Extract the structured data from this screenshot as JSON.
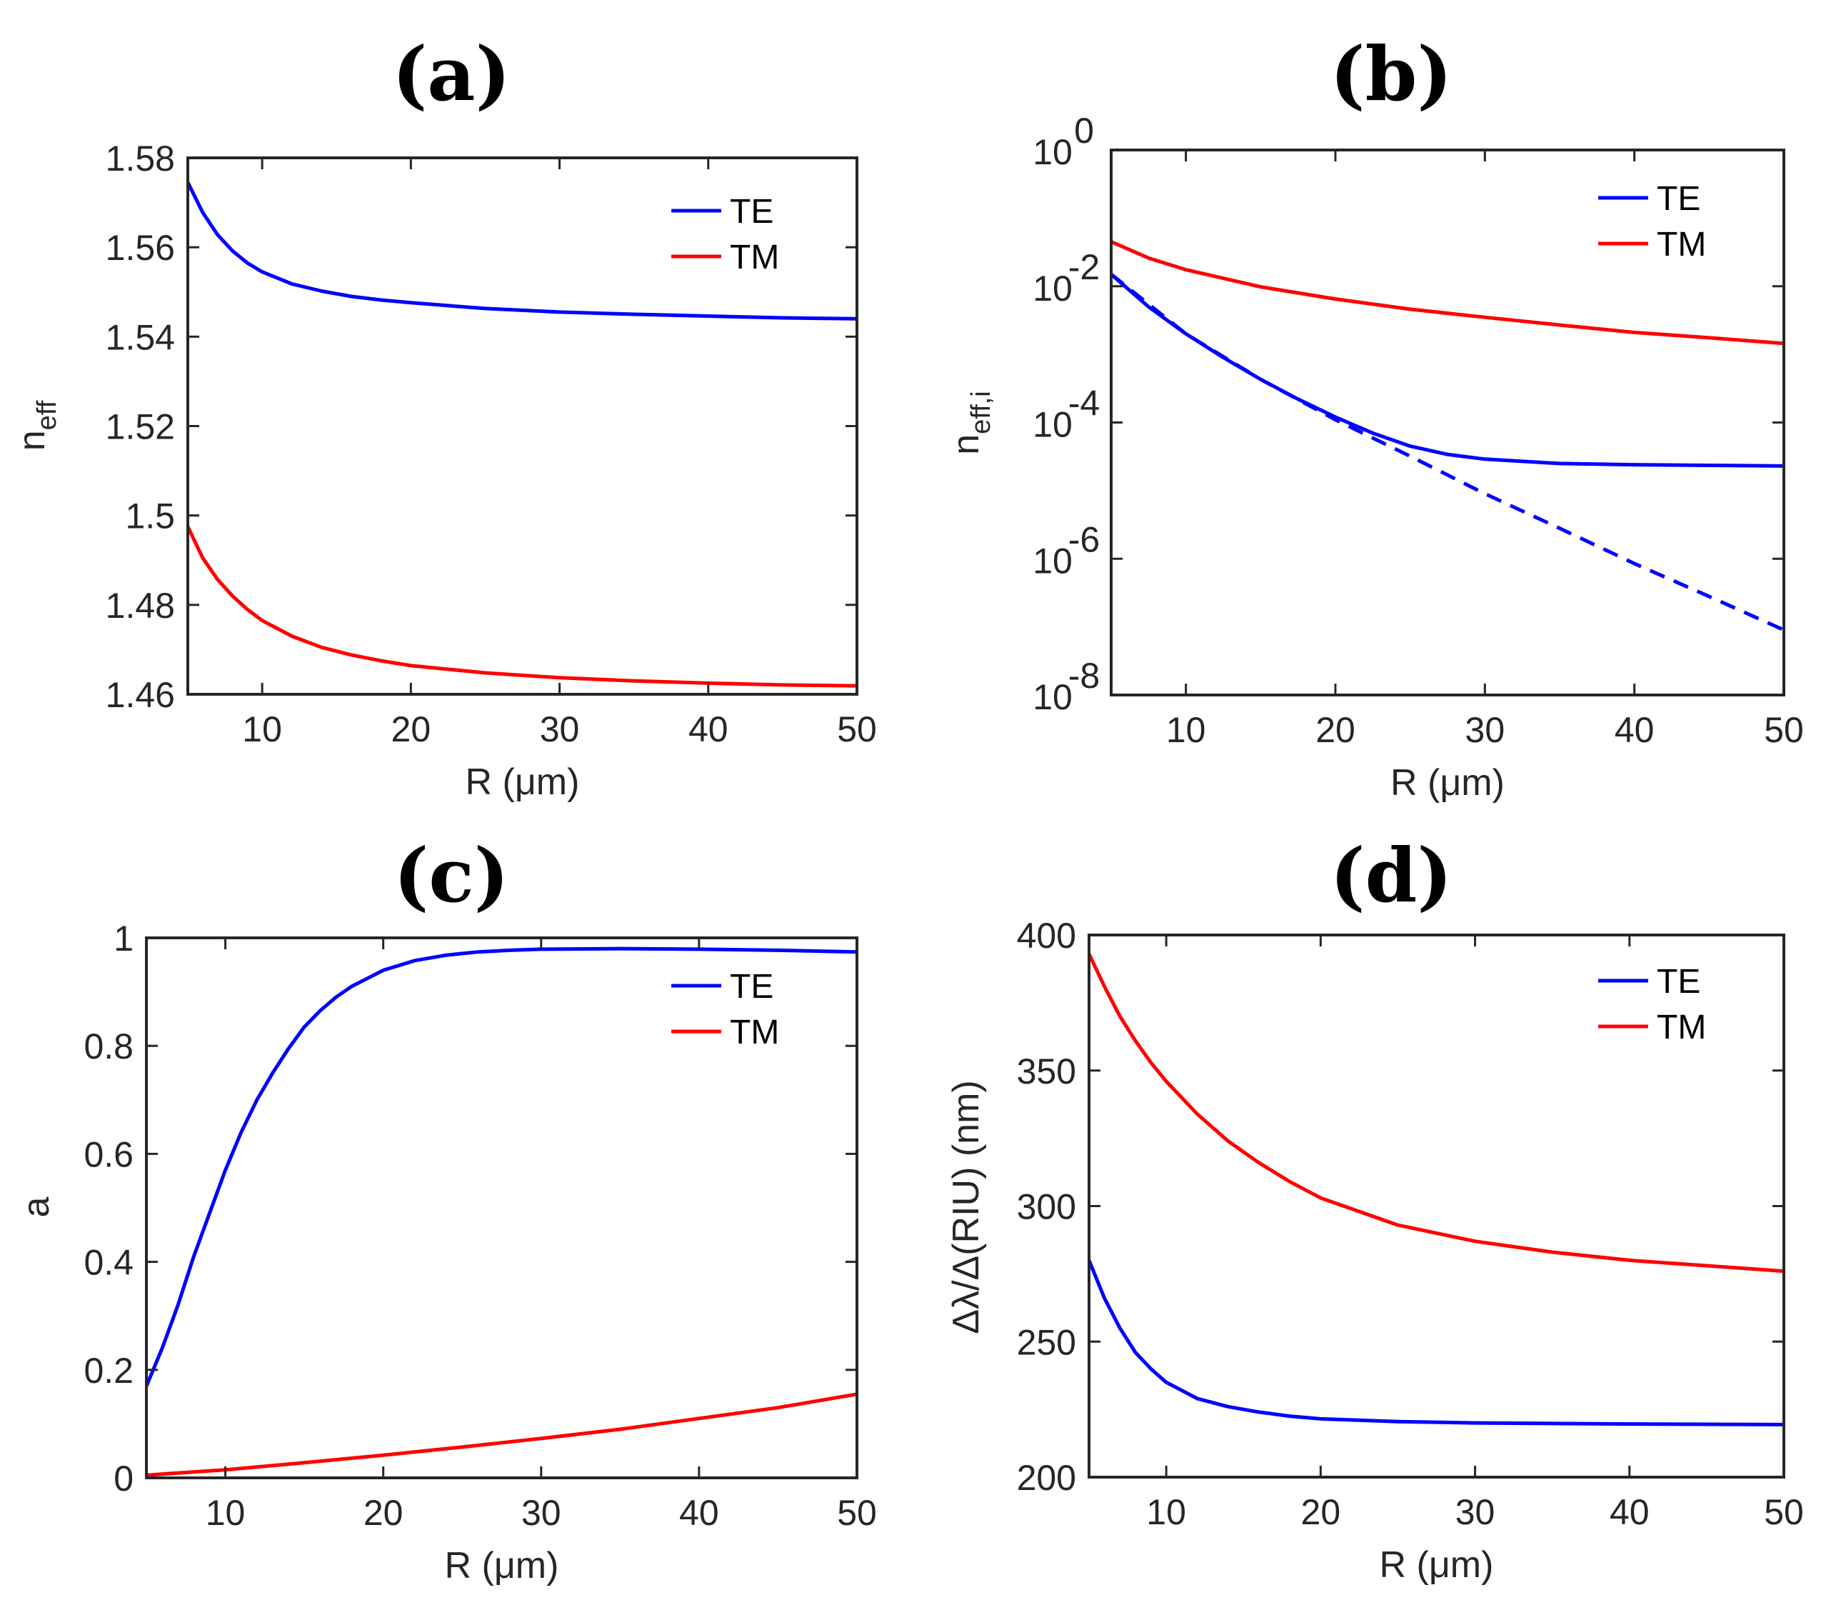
{
  "chart_data": [
    {
      "type": "line",
      "title": "(a)",
      "xlabel": "R (μm)",
      "ylabel": "n",
      "ylabel_sub": "eff",
      "xlim": [
        5,
        50
      ],
      "ylim": [
        1.46,
        1.58
      ],
      "yscale": "linear",
      "xticks": [
        10,
        20,
        30,
        40,
        50
      ],
      "xtick_labels": [
        "10",
        "20",
        "30",
        "40",
        "50"
      ],
      "yticks": [
        1.46,
        1.48,
        1.5,
        1.52,
        1.54,
        1.56,
        1.58
      ],
      "ytick_labels": [
        "1.46",
        "1.48",
        "1.5",
        "1.52",
        "1.54",
        "1.56",
        "1.58"
      ],
      "legend_position": "top-right",
      "series": [
        {
          "name": "TE",
          "color": "#0000ff",
          "style": "solid",
          "legend": true,
          "x": [
            5,
            6,
            7,
            8,
            9,
            10,
            12,
            14,
            16,
            18,
            20,
            25,
            30,
            35,
            40,
            45,
            50
          ],
          "y": [
            1.5745,
            1.5678,
            1.5628,
            1.5592,
            1.5565,
            1.5545,
            1.5518,
            1.5502,
            1.549,
            1.5482,
            1.5476,
            1.5463,
            1.5455,
            1.545,
            1.5446,
            1.5442,
            1.544
          ]
        },
        {
          "name": "TM",
          "color": "#ff0000",
          "style": "solid",
          "legend": true,
          "x": [
            5,
            6,
            7,
            8,
            9,
            10,
            12,
            14,
            16,
            18,
            20,
            25,
            30,
            35,
            40,
            45,
            50
          ],
          "y": [
            1.4975,
            1.4905,
            1.4857,
            1.482,
            1.479,
            1.4765,
            1.473,
            1.4705,
            1.4688,
            1.4675,
            1.4664,
            1.4648,
            1.4637,
            1.463,
            1.4625,
            1.4621,
            1.4619
          ]
        }
      ]
    },
    {
      "type": "line",
      "title": "(b)",
      "xlabel": "R (μm)",
      "ylabel": "n",
      "ylabel_sub": "eff,i",
      "xlim": [
        5,
        50
      ],
      "ylim": [
        1e-08,
        1
      ],
      "yscale": "log",
      "xticks": [
        10,
        20,
        30,
        40,
        50
      ],
      "xtick_labels": [
        "10",
        "20",
        "30",
        "40",
        "50"
      ],
      "yticks": [
        1e-08,
        1e-06,
        0.0001,
        0.01,
        1
      ],
      "ytick_base": [
        "10",
        "10",
        "10",
        "10",
        "10"
      ],
      "ytick_exp": [
        "-8",
        "-6",
        "-4",
        "-2",
        "0"
      ],
      "legend_position": "top-right",
      "series": [
        {
          "name": "TE",
          "color": "#0000ff",
          "style": "solid",
          "legend": true,
          "x": [
            5,
            7.5,
            10,
            12.5,
            15,
            17.5,
            20,
            22.5,
            25,
            27.5,
            30,
            35,
            40,
            45,
            50
          ],
          "y": [
            0.015,
            0.005,
            0.002,
            0.0009,
            0.00043,
            0.00022,
            0.00012,
            7e-05,
            4.5e-05,
            3.4e-05,
            2.9e-05,
            2.5e-05,
            2.4e-05,
            2.35e-05,
            2.3e-05
          ]
        },
        {
          "name": "TE (dashed)",
          "color": "#0000ff",
          "style": "dashed",
          "legend": false,
          "x": [
            5,
            10,
            15,
            20,
            25,
            30,
            35,
            40,
            45,
            50
          ],
          "y": [
            0.015,
            0.002,
            0.00043,
            0.00011,
            3.2e-05,
            9e-06,
            2.8e-06,
            8.5e-07,
            2.8e-07,
            9e-08
          ]
        },
        {
          "name": "TM",
          "color": "#ff0000",
          "style": "solid",
          "legend": true,
          "x": [
            5,
            7.5,
            10,
            15,
            20,
            25,
            30,
            35,
            40,
            45,
            50
          ],
          "y": [
            0.045,
            0.026,
            0.0175,
            0.0098,
            0.0065,
            0.0046,
            0.0035,
            0.0027,
            0.0021,
            0.00175,
            0.00145
          ]
        }
      ]
    },
    {
      "type": "line",
      "title": "(c)",
      "xlabel": "R (μm)",
      "ylabel": "a",
      "ylabel_sub": "",
      "xlim": [
        5,
        50
      ],
      "ylim": [
        0,
        1
      ],
      "yscale": "linear",
      "xticks": [
        10,
        20,
        30,
        40,
        50
      ],
      "xtick_labels": [
        "10",
        "20",
        "30",
        "40",
        "50"
      ],
      "yticks": [
        0,
        0.2,
        0.4,
        0.6,
        0.8,
        1
      ],
      "ytick_labels": [
        "0",
        "0.2",
        "0.4",
        "0.6",
        "0.8",
        "1"
      ],
      "legend_position": "top-right",
      "series": [
        {
          "name": "TE",
          "color": "#0000ff",
          "style": "solid",
          "legend": true,
          "x": [
            5,
            6,
            7,
            8,
            9,
            10,
            11,
            12,
            13,
            14,
            15,
            16,
            17,
            18,
            19,
            20,
            22,
            24,
            26,
            28,
            30,
            35,
            40,
            45,
            50
          ],
          "y": [
            0.17,
            0.24,
            0.32,
            0.41,
            0.49,
            0.57,
            0.64,
            0.7,
            0.75,
            0.795,
            0.835,
            0.865,
            0.89,
            0.91,
            0.925,
            0.94,
            0.958,
            0.968,
            0.974,
            0.977,
            0.979,
            0.98,
            0.979,
            0.977,
            0.974
          ]
        },
        {
          "name": "TM",
          "color": "#ff0000",
          "style": "solid",
          "legend": true,
          "x": [
            5,
            10,
            15,
            20,
            25,
            30,
            35,
            40,
            45,
            50
          ],
          "y": [
            0.005,
            0.015,
            0.028,
            0.042,
            0.057,
            0.073,
            0.09,
            0.11,
            0.13,
            0.155
          ]
        }
      ]
    },
    {
      "type": "line",
      "title": "(d)",
      "xlabel": "R (μm)",
      "ylabel": "Δλ/Δ(RIU)  (nm)",
      "ylabel_sub": "",
      "xlim": [
        5,
        50
      ],
      "ylim": [
        200,
        400
      ],
      "yscale": "linear",
      "xticks": [
        10,
        20,
        30,
        40,
        50
      ],
      "xtick_labels": [
        "10",
        "20",
        "30",
        "40",
        "50"
      ],
      "yticks": [
        200,
        250,
        300,
        350,
        400
      ],
      "ytick_labels": [
        "200",
        "250",
        "300",
        "350",
        "400"
      ],
      "legend_position": "top-right",
      "series": [
        {
          "name": "TE",
          "color": "#0000ff",
          "style": "solid",
          "legend": true,
          "x": [
            5,
            6,
            7,
            8,
            9,
            10,
            12,
            14,
            16,
            18,
            20,
            25,
            30,
            35,
            40,
            45,
            50
          ],
          "y": [
            280,
            266,
            255,
            246,
            240,
            235,
            229,
            226,
            224,
            222.5,
            221.5,
            220.5,
            220,
            219.8,
            219.6,
            219.5,
            219.4
          ]
        },
        {
          "name": "TM",
          "color": "#ff0000",
          "style": "solid",
          "legend": true,
          "x": [
            5,
            6,
            7,
            8,
            9,
            10,
            12,
            14,
            16,
            18,
            20,
            25,
            30,
            35,
            40,
            45,
            50
          ],
          "y": [
            393,
            381,
            370,
            361,
            353,
            346,
            334,
            324,
            316,
            309,
            303,
            293,
            287,
            283,
            280,
            278,
            276
          ]
        }
      ]
    }
  ]
}
